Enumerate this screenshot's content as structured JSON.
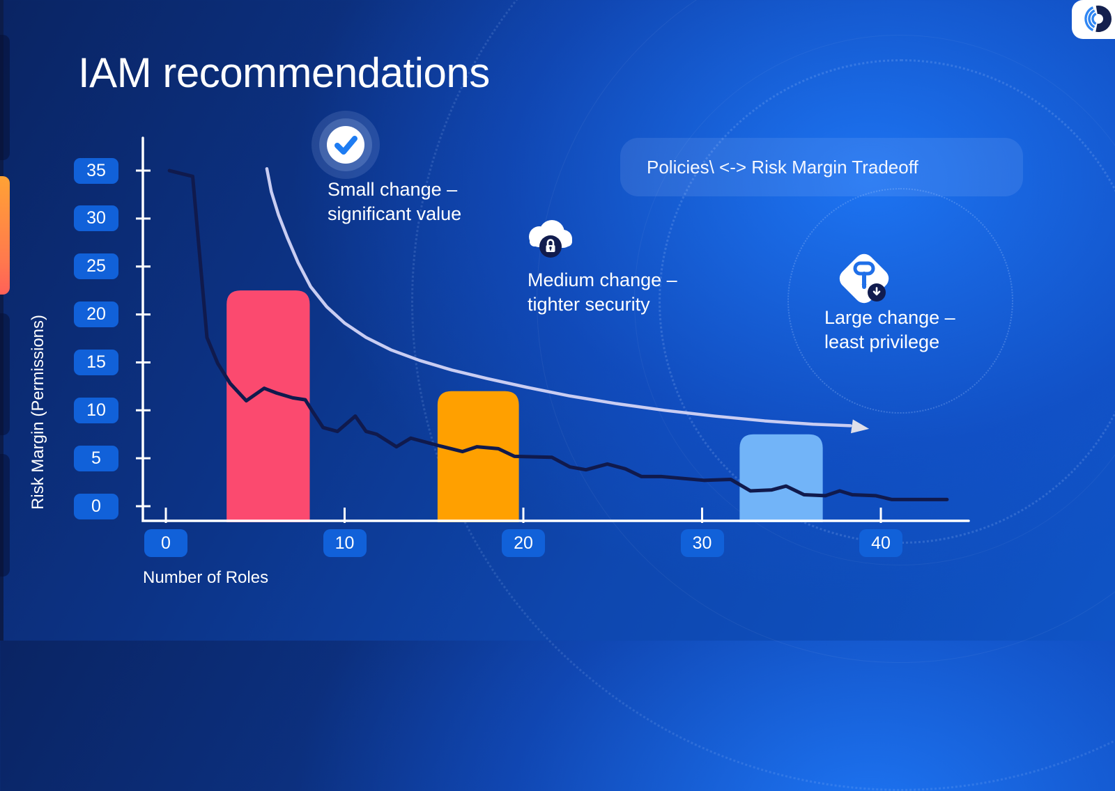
{
  "title": "IAM recommendations",
  "logo_icon": "brand-sonar-ring-icon",
  "pill": {
    "label": "Policies\\ <-> Risk Margin Tradeoff"
  },
  "annotations": [
    {
      "icon": "check-circle-icon",
      "line1": "Small change –",
      "line2": "significant value"
    },
    {
      "icon": "cloud-lock-icon",
      "line1": "Medium change –",
      "line2": "tighter security"
    },
    {
      "icon": "key-download-icon",
      "line1": "Large change –",
      "line2": "least privilege"
    }
  ],
  "colors": {
    "tick_chip": "#1161d9",
    "axis": "#ffffff",
    "line": "#101a4d",
    "trend_arrow": "#c9cdf2",
    "arrow_head": "#dedfea",
    "bar_small": "#fb4a6f",
    "bar_medium": "#ffa000",
    "bar_large": "#72b4f8"
  },
  "chart_data": {
    "type": "line",
    "title": "",
    "xlabel": "Number of Roles",
    "ylabel": "Risk Margin (Permissions)",
    "xlim": [
      0,
      45
    ],
    "ylim": [
      0,
      38
    ],
    "xticks": [
      0,
      10,
      20,
      30,
      40
    ],
    "yticks": [
      35,
      30,
      25,
      20,
      15,
      10,
      5,
      0
    ],
    "grid": false,
    "legend": "none",
    "line_series": {
      "name": "risk-margin-vs-roles",
      "color": "#101a4d",
      "points": [
        [
          0.2,
          35.0
        ],
        [
          1.5,
          34.4
        ],
        [
          2.3,
          17.6
        ],
        [
          2.9,
          14.9
        ],
        [
          3.6,
          12.8
        ],
        [
          4.5,
          11.0
        ],
        [
          5.5,
          12.3
        ],
        [
          6.2,
          11.8
        ],
        [
          7.1,
          11.3
        ],
        [
          7.8,
          11.1
        ],
        [
          8.2,
          9.9
        ],
        [
          8.8,
          8.2
        ],
        [
          9.6,
          7.8
        ],
        [
          10.6,
          9.4
        ],
        [
          11.2,
          7.8
        ],
        [
          11.8,
          7.5
        ],
        [
          12.9,
          6.2
        ],
        [
          13.7,
          7.1
        ],
        [
          15.3,
          6.3
        ],
        [
          16.6,
          5.7
        ],
        [
          17.4,
          6.2
        ],
        [
          18.6,
          6.0
        ],
        [
          19.5,
          5.2
        ],
        [
          21.6,
          5.1
        ],
        [
          22.6,
          4.1
        ],
        [
          23.5,
          3.8
        ],
        [
          24.7,
          4.4
        ],
        [
          25.7,
          3.9
        ],
        [
          26.6,
          3.1
        ],
        [
          27.7,
          3.1
        ],
        [
          30.1,
          2.7
        ],
        [
          31.6,
          2.8
        ],
        [
          32.7,
          1.6
        ],
        [
          33.9,
          1.7
        ],
        [
          34.7,
          2.1
        ],
        [
          35.7,
          1.2
        ],
        [
          36.9,
          1.1
        ],
        [
          37.7,
          1.6
        ],
        [
          38.4,
          1.2
        ],
        [
          39.7,
          1.1
        ],
        [
          40.6,
          0.7
        ],
        [
          43.7,
          0.7
        ]
      ]
    },
    "bars": [
      {
        "name": "small-change-bar",
        "x_start": 3.4,
        "x_end": 8.05,
        "value": 22.5,
        "color": "#fb4a6f"
      },
      {
        "name": "medium-change-bar",
        "x_start": 15.2,
        "x_end": 19.75,
        "value": 12.0,
        "color": "#ffa000"
      },
      {
        "name": "large-change-bar",
        "x_start": 32.1,
        "x_end": 36.75,
        "value": 7.5,
        "color": "#72b4f8"
      }
    ],
    "trend_arrow": {
      "color": "#c9cdf2",
      "points": [
        [
          5.65,
          35.2
        ],
        [
          5.9,
          32.8
        ],
        [
          6.3,
          30.4
        ],
        [
          6.8,
          28.0
        ],
        [
          7.4,
          25.4
        ],
        [
          8.1,
          22.9
        ],
        [
          9.0,
          20.8
        ],
        [
          10.0,
          19.1
        ],
        [
          11.2,
          17.6
        ],
        [
          12.6,
          16.3
        ],
        [
          14.2,
          15.2
        ],
        [
          16.0,
          14.2
        ],
        [
          18.0,
          13.3
        ],
        [
          20.2,
          12.4
        ],
        [
          22.6,
          11.5
        ],
        [
          25.2,
          10.7
        ],
        [
          27.9,
          10.0
        ],
        [
          30.7,
          9.4
        ],
        [
          33.5,
          8.9
        ],
        [
          36.2,
          8.55
        ],
        [
          38.3,
          8.4
        ]
      ]
    }
  }
}
